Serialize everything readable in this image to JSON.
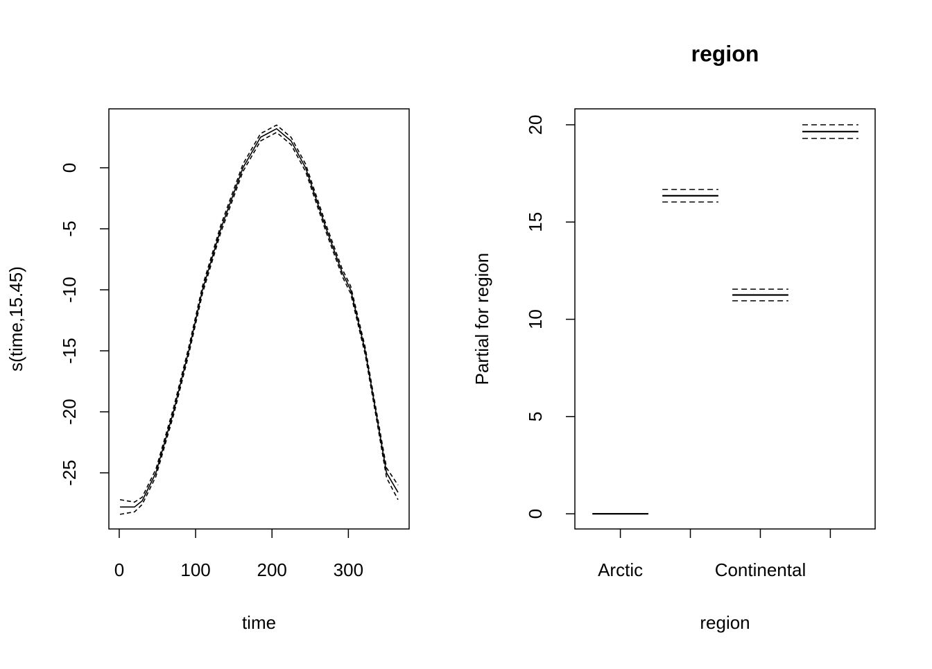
{
  "chart_data": [
    {
      "type": "line",
      "xlabel": "time",
      "ylabel": "s(time,15.45)",
      "x": [
        1,
        20,
        30,
        48,
        71,
        91,
        109,
        133,
        162,
        185,
        206,
        225,
        244,
        271,
        292,
        303,
        322,
        336,
        350,
        365
      ],
      "series": [
        {
          "linestyle": "solid",
          "color": "#000000",
          "values": [
            -27.8,
            -27.8,
            -27.3,
            -25,
            -20,
            -15,
            -10,
            -5,
            0,
            2.5,
            3.2,
            2.2,
            0,
            -5,
            -8.6,
            -10,
            -15,
            -20,
            -25,
            -26.6
          ]
        },
        {
          "linestyle": "dashed",
          "color": "#000000",
          "values": [
            -27.2,
            -27.4,
            -27.0,
            -24.7,
            -19.7,
            -14.7,
            -9.7,
            -4.7,
            0.3,
            2.8,
            3.5,
            2.5,
            0.3,
            -4.7,
            -8.3,
            -9.7,
            -14.7,
            -19.7,
            -24.6,
            -26.0
          ]
        },
        {
          "linestyle": "dashed",
          "color": "#000000",
          "values": [
            -28.4,
            -28.2,
            -27.6,
            -25.3,
            -20.3,
            -15.3,
            -10.3,
            -5.3,
            -0.3,
            2.2,
            2.9,
            1.9,
            -0.3,
            -5.3,
            -8.9,
            -10.3,
            -15.3,
            -20.3,
            -25.4,
            -27.2
          ]
        }
      ],
      "xlim": [
        -13.56,
        379.56
      ],
      "ylim": [
        -29.6,
        4.83
      ],
      "xticks": [
        0,
        100,
        200,
        300
      ],
      "yticks": [
        -25,
        -20,
        -15,
        -10,
        -5,
        0
      ]
    },
    {
      "type": "term",
      "title": "region",
      "xlabel": "region",
      "ylabel": "Partial for region",
      "categories": [
        "Arctic",
        null,
        "Continental",
        null
      ],
      "values": [
        0,
        16.35,
        11.25,
        19.65
      ],
      "se": [
        0,
        0.32,
        0.3,
        0.35
      ],
      "color": "#000000",
      "ylim": [
        -0.78,
        20.82
      ],
      "yticks": [
        0,
        5,
        10,
        15,
        20
      ]
    }
  ]
}
